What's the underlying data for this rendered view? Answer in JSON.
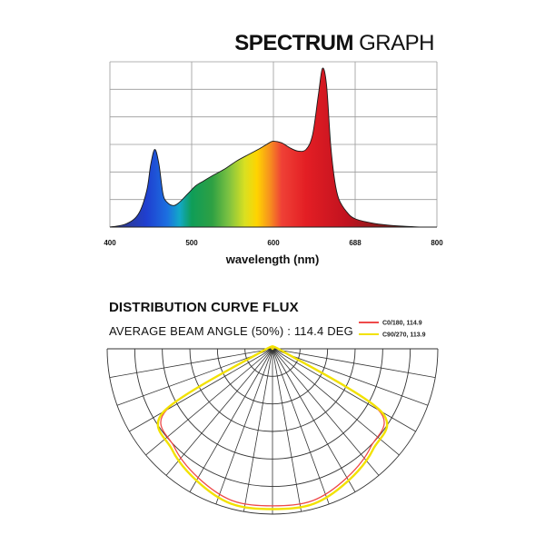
{
  "title": {
    "bold": "SPECTRUM",
    "light": "GRAPH"
  },
  "distribution": {
    "heading": "DISTRIBUTION CURVE FLUX",
    "beam_angle_text": "AVERAGE BEAM ANGLE  (50%) : 114.4 DEG"
  },
  "chart_data": [
    {
      "type": "area",
      "title": "SPECTRUM GRAPH",
      "xlabel": "wavelength (nm)",
      "ylabel": "",
      "xlim": [
        400,
        800
      ],
      "ylim": [
        0,
        1
      ],
      "xticks": [
        "400",
        "500",
        "600",
        "688",
        "800"
      ],
      "grid": true,
      "fill": "spectral-gradient",
      "x": [
        400,
        420,
        435,
        445,
        450,
        455,
        460,
        465,
        470,
        478,
        485,
        495,
        505,
        515,
        525,
        540,
        555,
        570,
        585,
        595,
        600,
        610,
        620,
        630,
        640,
        648,
        655,
        660,
        665,
        670,
        675,
        680,
        690,
        700,
        720,
        740,
        760,
        780
      ],
      "y": [
        0.0,
        0.02,
        0.08,
        0.22,
        0.38,
        0.47,
        0.38,
        0.2,
        0.15,
        0.13,
        0.15,
        0.2,
        0.25,
        0.28,
        0.31,
        0.35,
        0.4,
        0.44,
        0.48,
        0.51,
        0.52,
        0.51,
        0.48,
        0.46,
        0.47,
        0.56,
        0.8,
        0.96,
        0.86,
        0.5,
        0.28,
        0.17,
        0.09,
        0.05,
        0.025,
        0.012,
        0.005,
        0.0
      ]
    },
    {
      "type": "polar",
      "title": "DISTRIBUTION CURVE FLUX",
      "grid": true,
      "legend_position": "top-right",
      "series": [
        {
          "name": "C0/180, 114.9",
          "color": "#ee4a4a",
          "angles_deg": [
            -90,
            -75,
            -60,
            -45,
            -30,
            -15,
            0,
            15,
            30,
            45,
            60,
            75,
            90
          ],
          "values": [
            0,
            0.06,
            0.74,
            0.84,
            0.9,
            0.95,
            0.95,
            0.95,
            0.9,
            0.84,
            0.74,
            0.06,
            0
          ]
        },
        {
          "name": "C90/270, 113.9",
          "color": "#f2e200",
          "angles_deg": [
            -90,
            -75,
            -60,
            -45,
            -30,
            -15,
            0,
            15,
            30,
            45,
            60,
            75,
            90
          ],
          "values": [
            0,
            0.07,
            0.76,
            0.86,
            0.92,
            0.97,
            0.97,
            0.97,
            0.92,
            0.86,
            0.76,
            0.07,
            0
          ]
        }
      ]
    }
  ]
}
